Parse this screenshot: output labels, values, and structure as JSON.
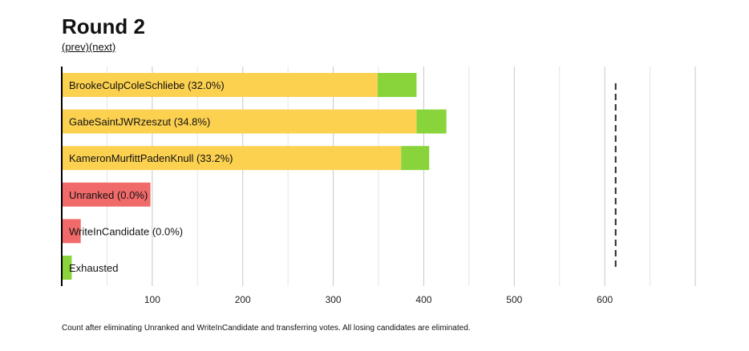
{
  "title": "Round 2",
  "nav": {
    "prev_label": "(prev)",
    "next_label": "(next)"
  },
  "footnote": "Count after eliminating Unranked and WriteInCandidate and transferring votes. All losing candidates are eliminated.",
  "colors": {
    "prior": "#fcd150",
    "transferred": "#88d43a",
    "eliminated": "#f06a6a",
    "grid": "#d9d9d9",
    "axis": "#000000"
  },
  "chart_data": {
    "type": "bar",
    "orientation": "horizontal",
    "stacked": true,
    "xlim": [
      0,
      700
    ],
    "xticks": [
      100,
      200,
      300,
      400,
      500,
      600
    ],
    "gridlines_every": 50,
    "threshold": 612,
    "categories": [
      "BrookeCulpColeSchliebe (32.0%)",
      "GabeSaintJWRzeszut (34.8%)",
      "KameronMurfittPadenKnull (33.2%)",
      "Unranked (0.0%)",
      "WriteInCandidate (0.0%)",
      "Exhausted"
    ],
    "series": [
      {
        "color": "prior",
        "values": [
          349,
          392,
          375,
          0,
          0,
          0
        ]
      },
      {
        "color": "transferred",
        "values": [
          43,
          33,
          31,
          0,
          0,
          11
        ]
      },
      {
        "color": "eliminated",
        "values": [
          0,
          0,
          0,
          98,
          21,
          0
        ]
      }
    ]
  }
}
